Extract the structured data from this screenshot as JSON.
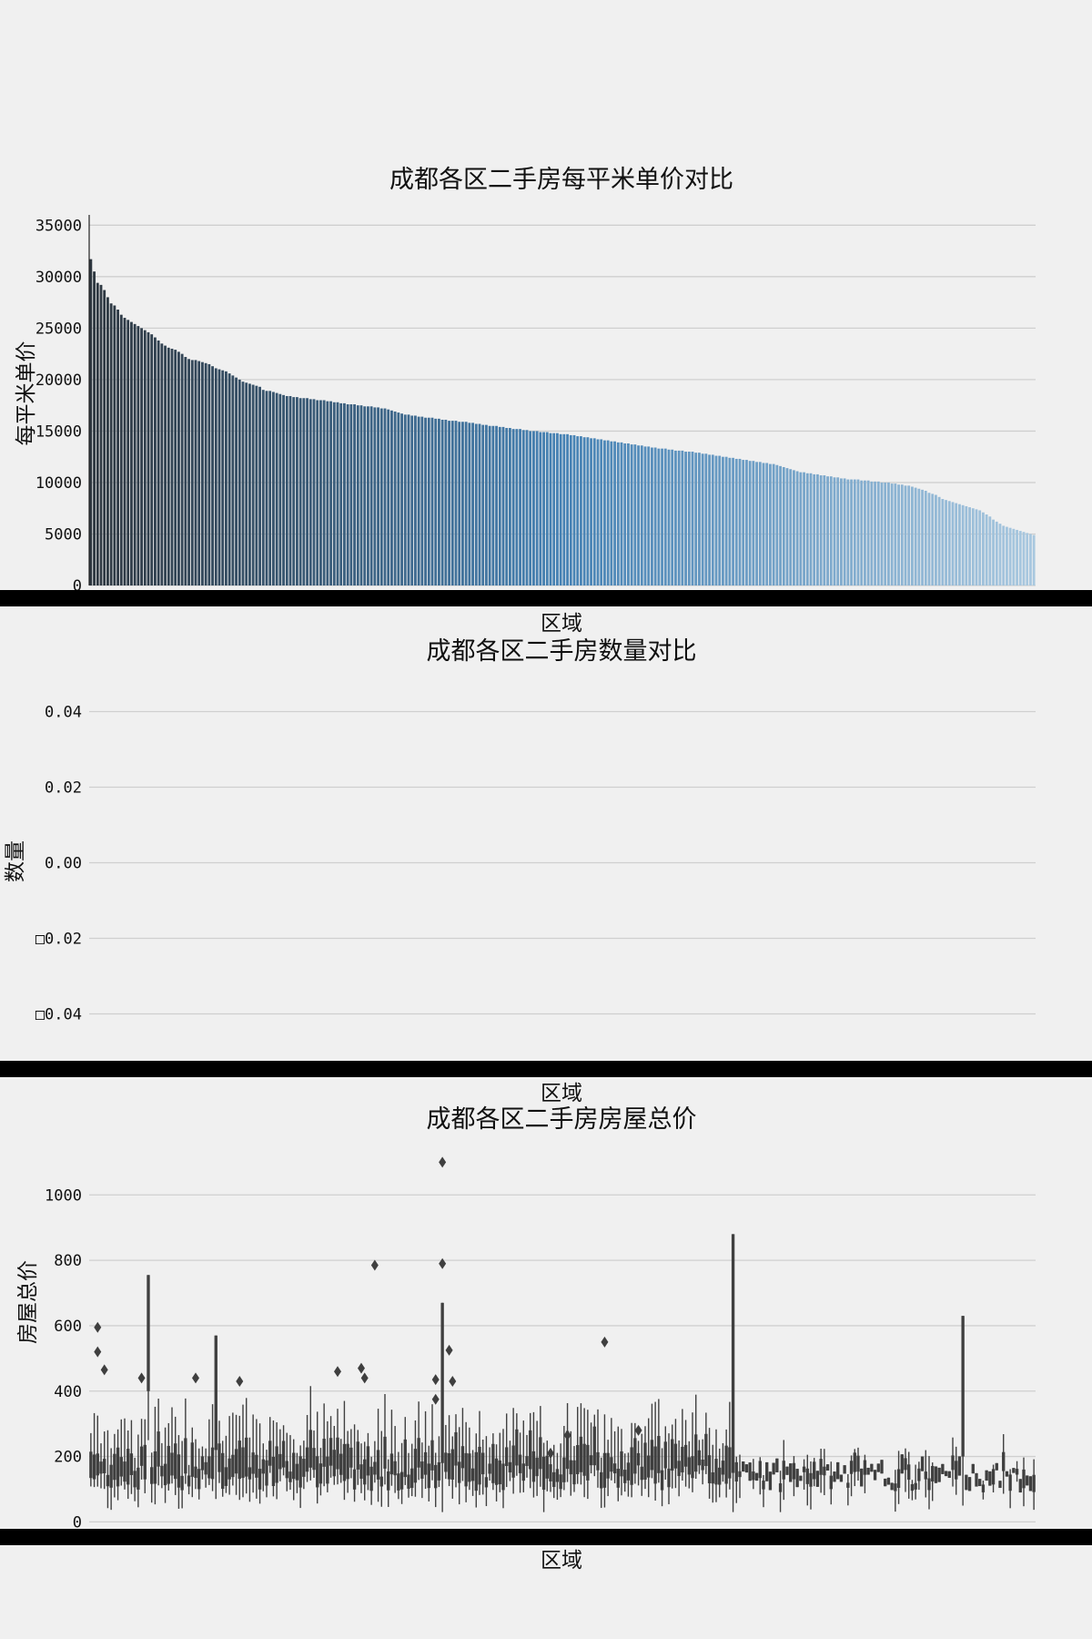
{
  "chart_data": [
    {
      "type": "bar",
      "title": "成都各区二手房每平米单价对比",
      "xlabel": "区域",
      "ylabel": "每平米单价",
      "ylim": [
        0,
        36000
      ],
      "yticks": [
        "0",
        "5000",
        "10000",
        "15000",
        "20000",
        "25000",
        "30000",
        "35000"
      ],
      "grid": true,
      "colormap": "Blues_d",
      "bar_count": 280,
      "values_sorted_desc": [
        31700,
        30500,
        29400,
        29200,
        28700,
        28000,
        27400,
        27200,
        26800,
        26300,
        26000,
        25800,
        25600,
        25400,
        25200,
        25000,
        24800,
        24600,
        24400,
        24100,
        23800,
        23500,
        23300,
        23100,
        23000,
        22900,
        22700,
        22500,
        22200,
        22000,
        21900,
        21900,
        21800,
        21700,
        21600,
        21500,
        21300,
        21100,
        21000,
        20900,
        20800,
        20600,
        20400,
        20200,
        20000,
        19800,
        19700,
        19600,
        19500,
        19400,
        19300,
        19000,
        18900,
        18900,
        18800,
        18700,
        18600,
        18500,
        18400,
        18400,
        18300,
        18300,
        18200,
        18200,
        18200,
        18100,
        18100,
        18000,
        18000,
        18000,
        17900,
        17900,
        17800,
        17800,
        17700,
        17700,
        17600,
        17600,
        17600,
        17500,
        17500,
        17400,
        17400,
        17400,
        17300,
        17300,
        17200,
        17200,
        17100,
        17000,
        16900,
        16800,
        16700,
        16600,
        16600,
        16500,
        16500,
        16400,
        16400,
        16300,
        16300,
        16300,
        16200,
        16200,
        16100,
        16100,
        16000,
        16000,
        16000,
        15900,
        15900,
        15900,
        15800,
        15800,
        15700,
        15700,
        15600,
        15600,
        15500,
        15500,
        15500,
        15400,
        15400,
        15300,
        15300,
        15200,
        15200,
        15200,
        15100,
        15100,
        15000,
        15000,
        15000,
        14900,
        14900,
        14900,
        14800,
        14800,
        14800,
        14700,
        14700,
        14700,
        14600,
        14600,
        14500,
        14500,
        14400,
        14400,
        14300,
        14300,
        14200,
        14200,
        14100,
        14100,
        14000,
        14000,
        13900,
        13900,
        13800,
        13800,
        13700,
        13700,
        13600,
        13600,
        13500,
        13500,
        13400,
        13400,
        13300,
        13300,
        13300,
        13200,
        13200,
        13100,
        13100,
        13100,
        13000,
        13000,
        13000,
        12900,
        12900,
        12800,
        12800,
        12700,
        12700,
        12600,
        12600,
        12500,
        12500,
        12400,
        12400,
        12300,
        12300,
        12200,
        12200,
        12100,
        12100,
        12000,
        12000,
        11900,
        11900,
        11800,
        11800,
        11700,
        11600,
        11500,
        11400,
        11300,
        11200,
        11100,
        11000,
        11000,
        10900,
        10900,
        10800,
        10800,
        10700,
        10700,
        10600,
        10600,
        10500,
        10500,
        10400,
        10400,
        10300,
        10300,
        10300,
        10300,
        10200,
        10200,
        10200,
        10100,
        10100,
        10100,
        10000,
        10000,
        10000,
        9900,
        9900,
        9800,
        9800,
        9700,
        9700,
        9600,
        9500,
        9400,
        9300,
        9200,
        9000,
        8900,
        8800,
        8600,
        8400,
        8300,
        8200,
        8100,
        8000,
        7900,
        7800,
        7700,
        7600,
        7500,
        7400,
        7300,
        7100,
        6900,
        6700,
        6400,
        6200,
        6000,
        5800,
        5700,
        5600,
        5500,
        5400,
        5300,
        5200,
        5100,
        5000,
        4900
      ]
    },
    {
      "type": "bar",
      "title": "成都各区二手房数量对比",
      "xlabel": "区域",
      "ylabel": "数量",
      "ylim": [
        -0.05,
        0.05
      ],
      "yticks": [
        "0.04",
        "0.02",
        "0.00",
        "□0.02",
        "□0.04"
      ],
      "grid": true,
      "values": []
    },
    {
      "type": "box",
      "title": "成都各区二手房房屋总价",
      "xlabel": "区域",
      "ylabel": "房屋总价",
      "ylim": [
        -10,
        1140
      ],
      "yticks": [
        "0",
        "200",
        "400",
        "600",
        "800",
        "1000"
      ],
      "grid": true,
      "box_color": "#3f3f3f",
      "group_count": 280,
      "notable_outliers": [
        {
          "group": 2,
          "value": 595
        },
        {
          "group": 2,
          "value": 520
        },
        {
          "group": 4,
          "value": 465
        },
        {
          "group": 15,
          "value": 440
        },
        {
          "group": 31,
          "value": 440
        },
        {
          "group": 44,
          "value": 430
        },
        {
          "group": 84,
          "value": 785
        },
        {
          "group": 80,
          "value": 470
        },
        {
          "group": 81,
          "value": 440
        },
        {
          "group": 73,
          "value": 460
        },
        {
          "group": 104,
          "value": 1100
        },
        {
          "group": 104,
          "value": 790
        },
        {
          "group": 102,
          "value": 435
        },
        {
          "group": 102,
          "value": 375
        },
        {
          "group": 106,
          "value": 525
        },
        {
          "group": 107,
          "value": 430
        },
        {
          "group": 136,
          "value": 210
        },
        {
          "group": 152,
          "value": 550
        },
        {
          "group": 141,
          "value": 265
        },
        {
          "group": 162,
          "value": 280
        }
      ],
      "notable_groups": [
        {
          "group": 17,
          "q1": 400,
          "q3": 755
        },
        {
          "group": 37,
          "q1": 220,
          "q3": 570
        },
        {
          "group": 104,
          "q1": 180,
          "q3": 670
        },
        {
          "group": 190,
          "q1": 150,
          "q3": 880
        },
        {
          "group": 258,
          "q1": 200,
          "q3": 630
        }
      ]
    }
  ]
}
